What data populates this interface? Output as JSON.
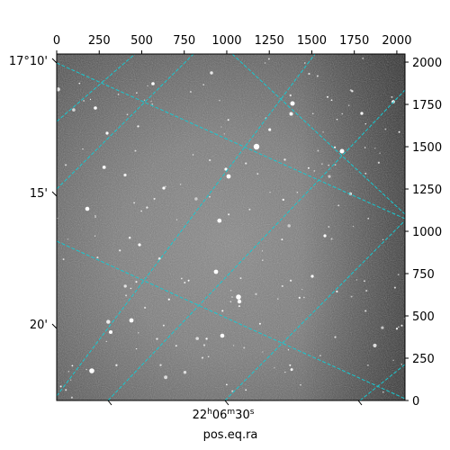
{
  "figure": {
    "xlabel": "pos.eq.ra",
    "top_x_ticks": [
      "0",
      "250",
      "500",
      "750",
      "1000",
      "1250",
      "1500",
      "1750",
      "2000"
    ],
    "right_y_ticks": [
      "0",
      "250",
      "500",
      "750",
      "1000",
      "1250",
      "1500",
      "1750",
      "2000"
    ],
    "dec_ticks": [
      "17°10'",
      "15'",
      "20'"
    ],
    "ra_tick": {
      "prefix": "22",
      "h": "h",
      "mid": "06",
      "m": "m",
      "sec": "30",
      "s": "s"
    },
    "colors": {
      "grid": "#18c8d0",
      "frame": "#000000",
      "sky_dark": "#3a3a3a",
      "sky_light": "#9a9a9a"
    }
  }
}
